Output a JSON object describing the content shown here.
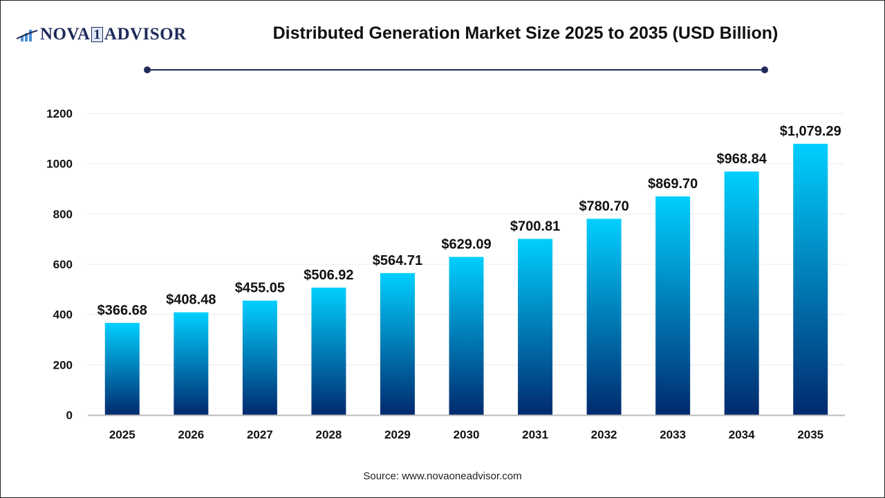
{
  "logo": {
    "text_left": "NOVA",
    "text_mid": "1",
    "text_right": "ADVISOR",
    "color": "#1e2a5a"
  },
  "source": "Source: www.novaoneadvisor.com",
  "chart_data": {
    "type": "bar",
    "title": "Distributed Generation Market Size 2025 to 2035 (USD Billion)",
    "categories": [
      "2025",
      "2026",
      "2027",
      "2028",
      "2029",
      "2030",
      "2031",
      "2032",
      "2033",
      "2034",
      "2035"
    ],
    "values": [
      366.68,
      408.48,
      455.05,
      506.92,
      564.71,
      629.09,
      700.81,
      780.7,
      869.7,
      968.84,
      1079.29
    ],
    "data_labels": [
      "$366.68",
      "$408.48",
      "$455.05",
      "$506.92",
      "$564.71",
      "$629.09",
      "$700.81",
      "$780.70",
      "$869.70",
      "$968.84",
      "$1,079.29"
    ],
    "yticks": [
      0,
      200,
      400,
      600,
      800,
      1000,
      1200
    ],
    "ylim": [
      0,
      1200
    ],
    "xlabel": "",
    "ylabel": "",
    "grid": true,
    "colors": {
      "bar_top": "#00cfff",
      "bar_bottom": "#002a6e"
    }
  }
}
